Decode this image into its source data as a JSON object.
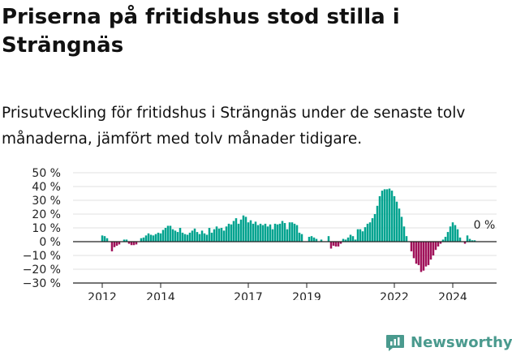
{
  "title": "Priserna på fritidshus stod stilla i Strängnäs",
  "subtitle": "Prisutveckling för fritidshus i Strängnäs under de senaste tolv månaderna, jämfört med tolv månader tidigare.",
  "brand": {
    "name": "Newsworthy",
    "icon": "newsworthy-logo-icon",
    "color": "#4a9a8e"
  },
  "chart_data": {
    "type": "bar",
    "title": "",
    "xlabel": "",
    "ylabel": "",
    "ylim": [
      -30,
      50
    ],
    "y_ticks": [
      50,
      40,
      30,
      20,
      10,
      0,
      -10,
      -20,
      -30
    ],
    "y_tick_labels": [
      "50 %",
      "40 %",
      "30 %",
      "20 %",
      "10 %",
      "0 %",
      "−10 %",
      "−20 %",
      "−30 %"
    ],
    "x_range": [
      2011.0,
      2025.5
    ],
    "x_ticks": [
      2012,
      2014,
      2017,
      2019,
      2022,
      2024
    ],
    "x_tick_labels": [
      "2012",
      "2014",
      "2017",
      "2019",
      "2022",
      "2024"
    ],
    "grid": true,
    "positive_color": "#00a38f",
    "negative_color": "#a0125a",
    "annotations": [
      {
        "text": "0 %",
        "x": 2025.1,
        "y": 0
      }
    ],
    "series": [
      {
        "values": [
          {
            "x": 2012.0,
            "y": 4.5
          },
          {
            "x": 2012.083,
            "y": 4
          },
          {
            "x": 2012.167,
            "y": 2.5
          },
          {
            "x": 2012.333,
            "y": -7
          },
          {
            "x": 2012.417,
            "y": -4
          },
          {
            "x": 2012.5,
            "y": -3
          },
          {
            "x": 2012.583,
            "y": -2
          },
          {
            "x": 2012.75,
            "y": 1.5
          },
          {
            "x": 2012.833,
            "y": 1.5
          },
          {
            "x": 2012.917,
            "y": -1.5
          },
          {
            "x": 2013.0,
            "y": -2.5
          },
          {
            "x": 2013.083,
            "y": -2.5
          },
          {
            "x": 2013.167,
            "y": -2
          },
          {
            "x": 2013.333,
            "y": 2.5
          },
          {
            "x": 2013.417,
            "y": 3
          },
          {
            "x": 2013.5,
            "y": 4.5
          },
          {
            "x": 2013.583,
            "y": 6
          },
          {
            "x": 2013.667,
            "y": 5
          },
          {
            "x": 2013.75,
            "y": 4.5
          },
          {
            "x": 2013.833,
            "y": 5.5
          },
          {
            "x": 2013.917,
            "y": 6.5
          },
          {
            "x": 2014.0,
            "y": 6
          },
          {
            "x": 2014.083,
            "y": 8.5
          },
          {
            "x": 2014.167,
            "y": 10
          },
          {
            "x": 2014.25,
            "y": 11.5
          },
          {
            "x": 2014.333,
            "y": 11.5
          },
          {
            "x": 2014.417,
            "y": 9
          },
          {
            "x": 2014.5,
            "y": 8
          },
          {
            "x": 2014.583,
            "y": 7
          },
          {
            "x": 2014.667,
            "y": 10
          },
          {
            "x": 2014.75,
            "y": 6.5
          },
          {
            "x": 2014.833,
            "y": 5.5
          },
          {
            "x": 2014.917,
            "y": 5
          },
          {
            "x": 2015.0,
            "y": 6.5
          },
          {
            "x": 2015.083,
            "y": 8
          },
          {
            "x": 2015.167,
            "y": 9.5
          },
          {
            "x": 2015.25,
            "y": 7
          },
          {
            "x": 2015.333,
            "y": 5.5
          },
          {
            "x": 2015.417,
            "y": 8
          },
          {
            "x": 2015.5,
            "y": 6
          },
          {
            "x": 2015.583,
            "y": 5
          },
          {
            "x": 2015.667,
            "y": 10
          },
          {
            "x": 2015.75,
            "y": 6.5
          },
          {
            "x": 2015.833,
            "y": 9
          },
          {
            "x": 2015.917,
            "y": 11
          },
          {
            "x": 2016.0,
            "y": 9.5
          },
          {
            "x": 2016.083,
            "y": 10
          },
          {
            "x": 2016.167,
            "y": 8
          },
          {
            "x": 2016.25,
            "y": 11
          },
          {
            "x": 2016.333,
            "y": 13
          },
          {
            "x": 2016.417,
            "y": 12.5
          },
          {
            "x": 2016.5,
            "y": 15
          },
          {
            "x": 2016.583,
            "y": 17
          },
          {
            "x": 2016.667,
            "y": 13
          },
          {
            "x": 2016.75,
            "y": 16
          },
          {
            "x": 2016.833,
            "y": 19
          },
          {
            "x": 2016.917,
            "y": 18
          },
          {
            "x": 2017.0,
            "y": 14
          },
          {
            "x": 2017.083,
            "y": 15.5
          },
          {
            "x": 2017.167,
            "y": 13
          },
          {
            "x": 2017.25,
            "y": 14.5
          },
          {
            "x": 2017.333,
            "y": 12
          },
          {
            "x": 2017.417,
            "y": 13
          },
          {
            "x": 2017.5,
            "y": 12
          },
          {
            "x": 2017.583,
            "y": 13
          },
          {
            "x": 2017.667,
            "y": 11
          },
          {
            "x": 2017.75,
            "y": 12.5
          },
          {
            "x": 2017.833,
            "y": 9
          },
          {
            "x": 2017.917,
            "y": 13
          },
          {
            "x": 2018.0,
            "y": 12.5
          },
          {
            "x": 2018.083,
            "y": 13
          },
          {
            "x": 2018.167,
            "y": 15
          },
          {
            "x": 2018.25,
            "y": 13.5
          },
          {
            "x": 2018.333,
            "y": 9
          },
          {
            "x": 2018.417,
            "y": 14
          },
          {
            "x": 2018.5,
            "y": 14
          },
          {
            "x": 2018.583,
            "y": 13
          },
          {
            "x": 2018.667,
            "y": 12
          },
          {
            "x": 2018.75,
            "y": 6.5
          },
          {
            "x": 2018.833,
            "y": 5.5
          },
          {
            "x": 2019.083,
            "y": 3.5
          },
          {
            "x": 2019.167,
            "y": 4
          },
          {
            "x": 2019.25,
            "y": 3
          },
          {
            "x": 2019.333,
            "y": 2
          },
          {
            "x": 2019.5,
            "y": 1.5
          },
          {
            "x": 2019.75,
            "y": 4
          },
          {
            "x": 2019.833,
            "y": -5
          },
          {
            "x": 2019.917,
            "y": -3
          },
          {
            "x": 2020.0,
            "y": -3.5
          },
          {
            "x": 2020.083,
            "y": -3.5
          },
          {
            "x": 2020.167,
            "y": -1.5
          },
          {
            "x": 2020.25,
            "y": 2
          },
          {
            "x": 2020.333,
            "y": 1.5
          },
          {
            "x": 2020.417,
            "y": 3
          },
          {
            "x": 2020.5,
            "y": 5
          },
          {
            "x": 2020.583,
            "y": 4
          },
          {
            "x": 2020.667,
            "y": 1.5
          },
          {
            "x": 2020.75,
            "y": 9
          },
          {
            "x": 2020.833,
            "y": 9
          },
          {
            "x": 2020.917,
            "y": 7.5
          },
          {
            "x": 2021.0,
            "y": 10.5
          },
          {
            "x": 2021.083,
            "y": 13
          },
          {
            "x": 2021.167,
            "y": 14
          },
          {
            "x": 2021.25,
            "y": 17
          },
          {
            "x": 2021.333,
            "y": 20
          },
          {
            "x": 2021.417,
            "y": 26
          },
          {
            "x": 2021.5,
            "y": 33
          },
          {
            "x": 2021.583,
            "y": 37
          },
          {
            "x": 2021.667,
            "y": 38
          },
          {
            "x": 2021.75,
            "y": 38
          },
          {
            "x": 2021.833,
            "y": 38.5
          },
          {
            "x": 2021.917,
            "y": 37
          },
          {
            "x": 2022.0,
            "y": 33
          },
          {
            "x": 2022.083,
            "y": 29
          },
          {
            "x": 2022.167,
            "y": 24
          },
          {
            "x": 2022.25,
            "y": 18
          },
          {
            "x": 2022.333,
            "y": 11
          },
          {
            "x": 2022.417,
            "y": 4
          },
          {
            "x": 2022.583,
            "y": -7
          },
          {
            "x": 2022.667,
            "y": -12
          },
          {
            "x": 2022.75,
            "y": -16
          },
          {
            "x": 2022.833,
            "y": -17
          },
          {
            "x": 2022.917,
            "y": -22
          },
          {
            "x": 2023.0,
            "y": -21
          },
          {
            "x": 2023.083,
            "y": -18
          },
          {
            "x": 2023.167,
            "y": -17
          },
          {
            "x": 2023.25,
            "y": -13
          },
          {
            "x": 2023.333,
            "y": -10
          },
          {
            "x": 2023.417,
            "y": -6
          },
          {
            "x": 2023.5,
            "y": -3.5
          },
          {
            "x": 2023.583,
            "y": -1.5
          },
          {
            "x": 2023.667,
            "y": 1.5
          },
          {
            "x": 2023.75,
            "y": 3.5
          },
          {
            "x": 2023.833,
            "y": 7
          },
          {
            "x": 2023.917,
            "y": 11
          },
          {
            "x": 2024.0,
            "y": 14
          },
          {
            "x": 2024.083,
            "y": 12
          },
          {
            "x": 2024.167,
            "y": 9
          },
          {
            "x": 2024.25,
            "y": 3
          },
          {
            "x": 2024.417,
            "y": -1.5
          },
          {
            "x": 2024.5,
            "y": 4.5
          },
          {
            "x": 2024.583,
            "y": 2
          },
          {
            "x": 2024.667,
            "y": 1
          },
          {
            "x": 2024.75,
            "y": 1
          }
        ]
      }
    ]
  }
}
